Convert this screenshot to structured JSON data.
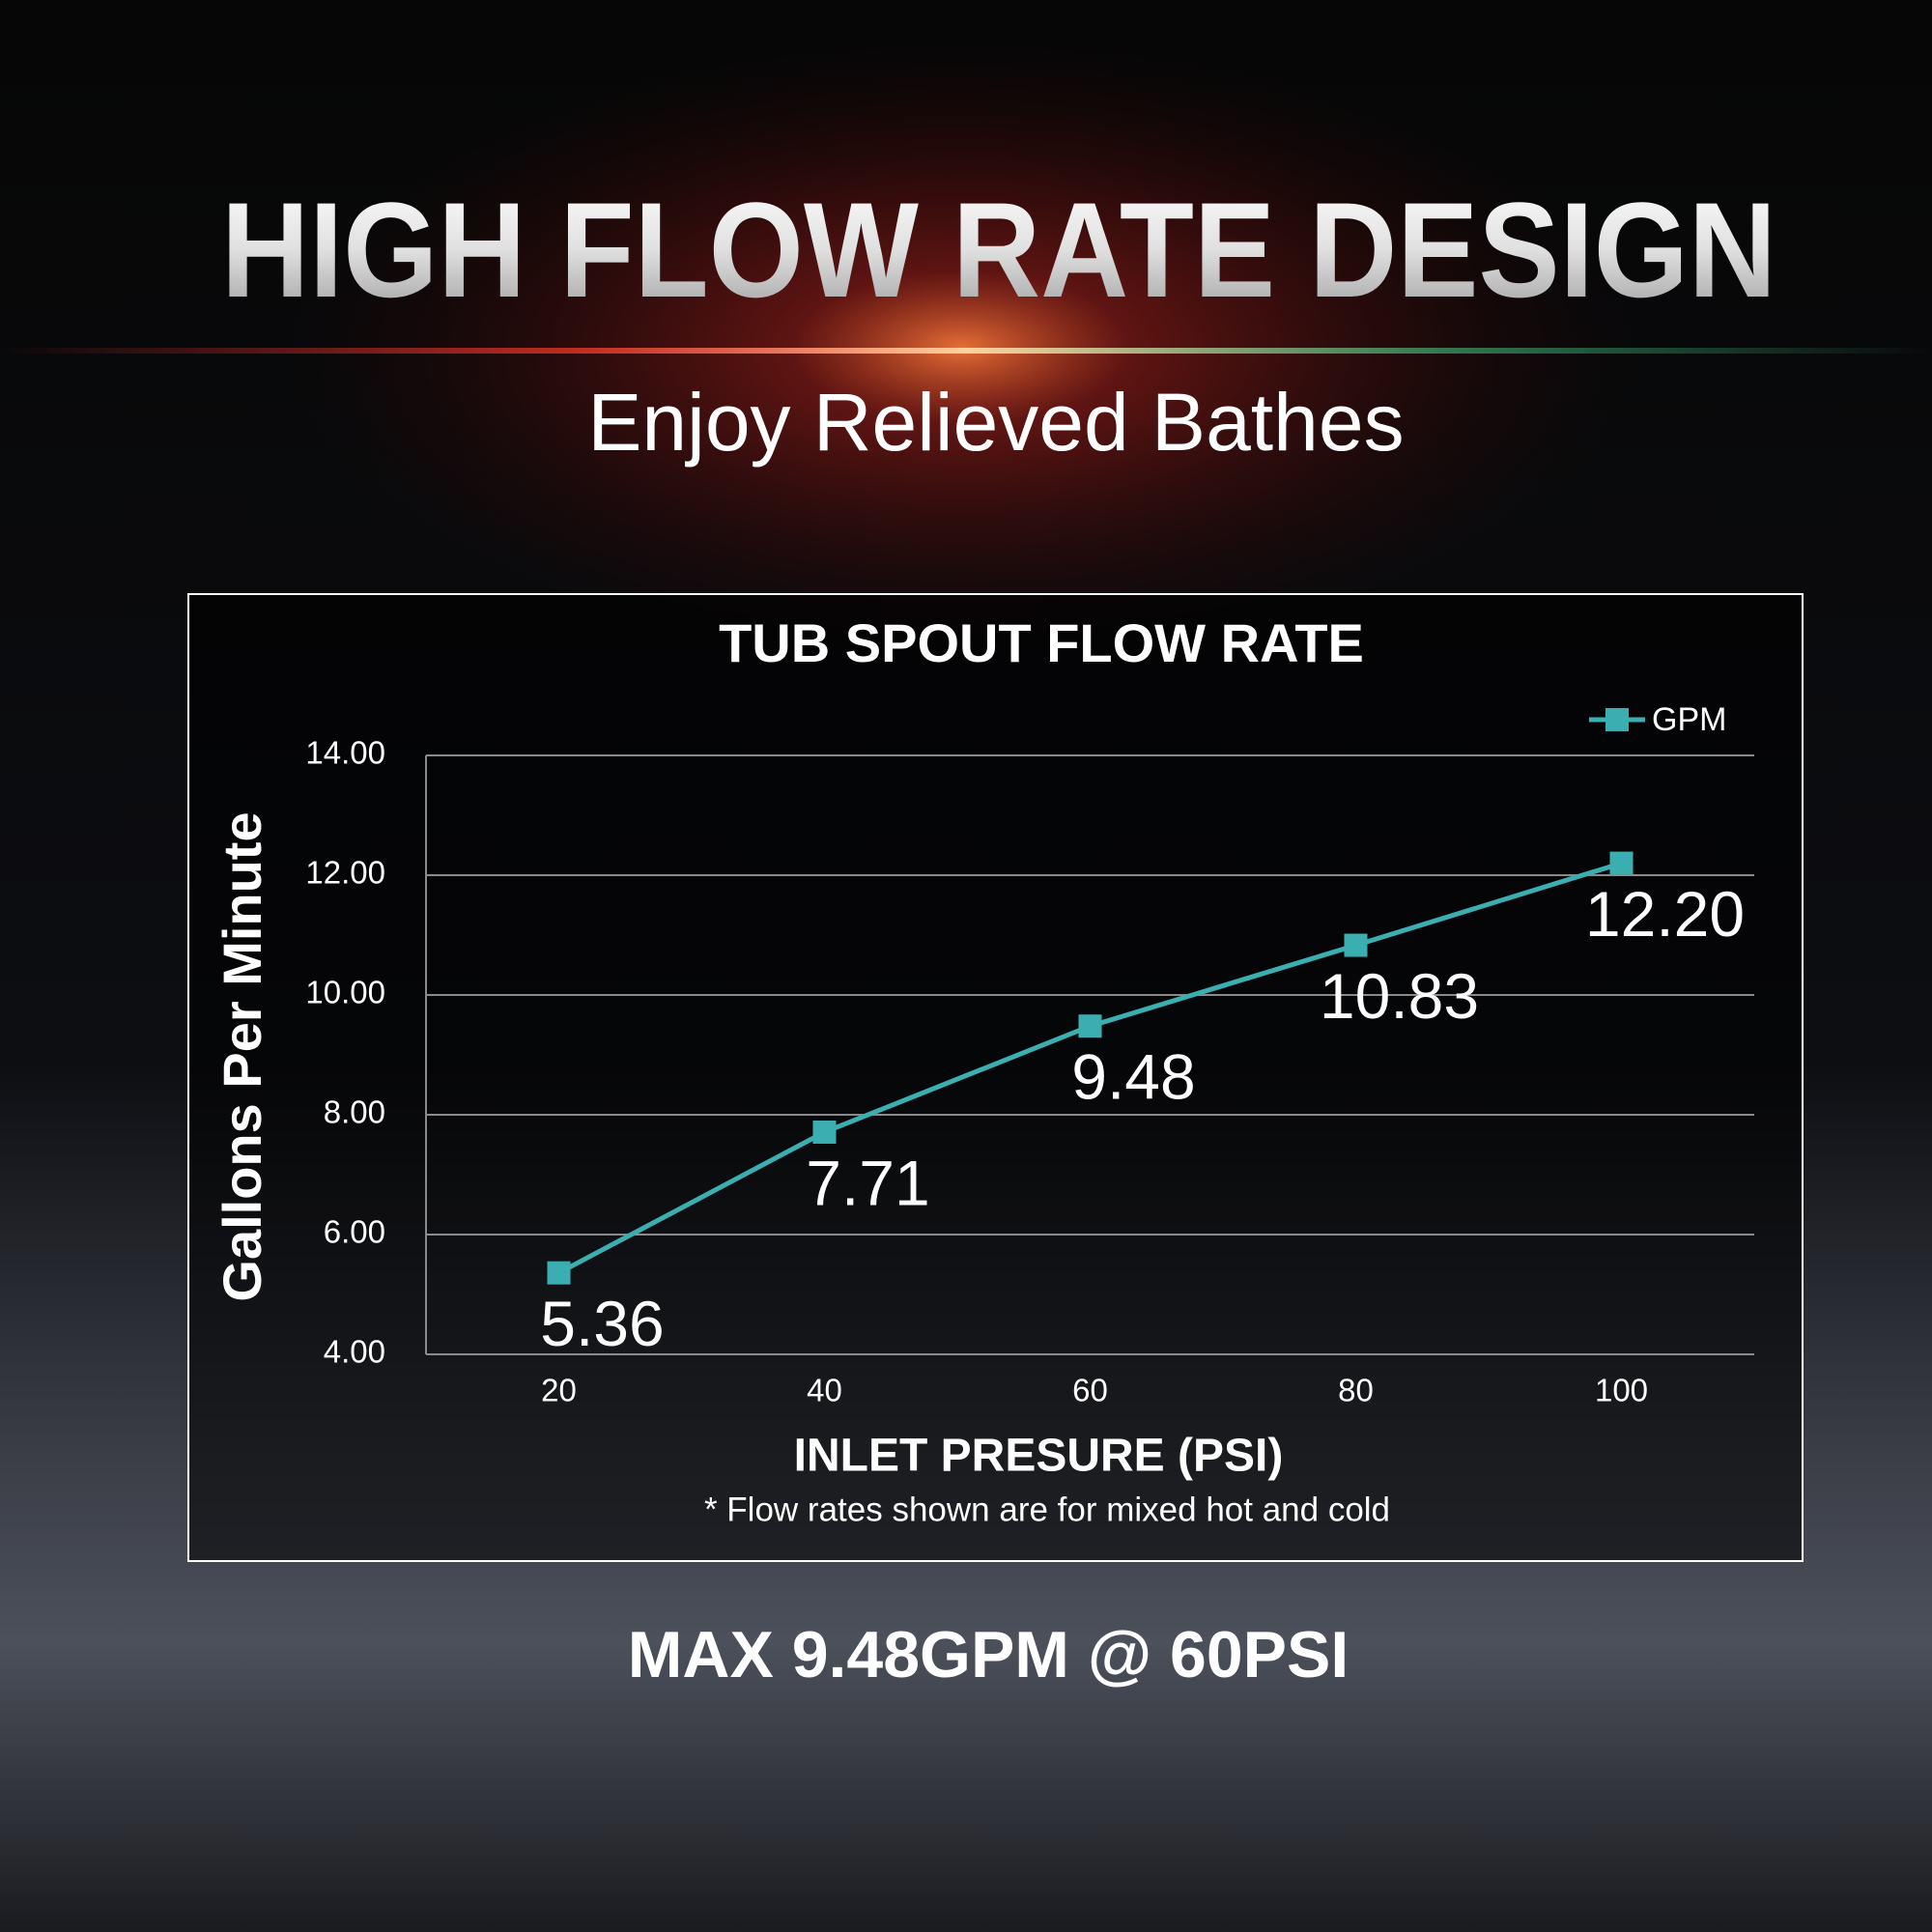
{
  "page": {
    "title": "HIGH FLOW RATE DESIGN",
    "subtitle": "Enjoy Relieved Bathes",
    "footer": "MAX 9.48GPM @ 60PSI"
  },
  "chart_data": {
    "type": "line",
    "title": "TUB SPOUT FLOW RATE",
    "x_label": "INLET PRESURE (PSI)",
    "y_label": "Gallons Per Minute",
    "note": "* Flow rates shown are for mixed hot and cold",
    "categories": [
      "20",
      "40",
      "60",
      "80",
      "100"
    ],
    "series": [
      {
        "name": "GPM",
        "color": "#3aaeb0",
        "values": [
          5.36,
          7.71,
          9.48,
          10.83,
          12.2
        ],
        "value_labels": [
          "5.36",
          "7.71",
          "9.48",
          "10.83",
          "12.20"
        ]
      }
    ],
    "ylim": [
      4,
      14
    ],
    "yticks": [
      {
        "value": 4,
        "label": "4.00"
      },
      {
        "value": 6,
        "label": "6.00"
      },
      {
        "value": 8,
        "label": "8.00"
      },
      {
        "value": 10,
        "label": "10.00"
      },
      {
        "value": 12,
        "label": "12.00"
      },
      {
        "value": 14,
        "label": "14.00"
      }
    ],
    "grid": true,
    "legend": "top-right"
  }
}
